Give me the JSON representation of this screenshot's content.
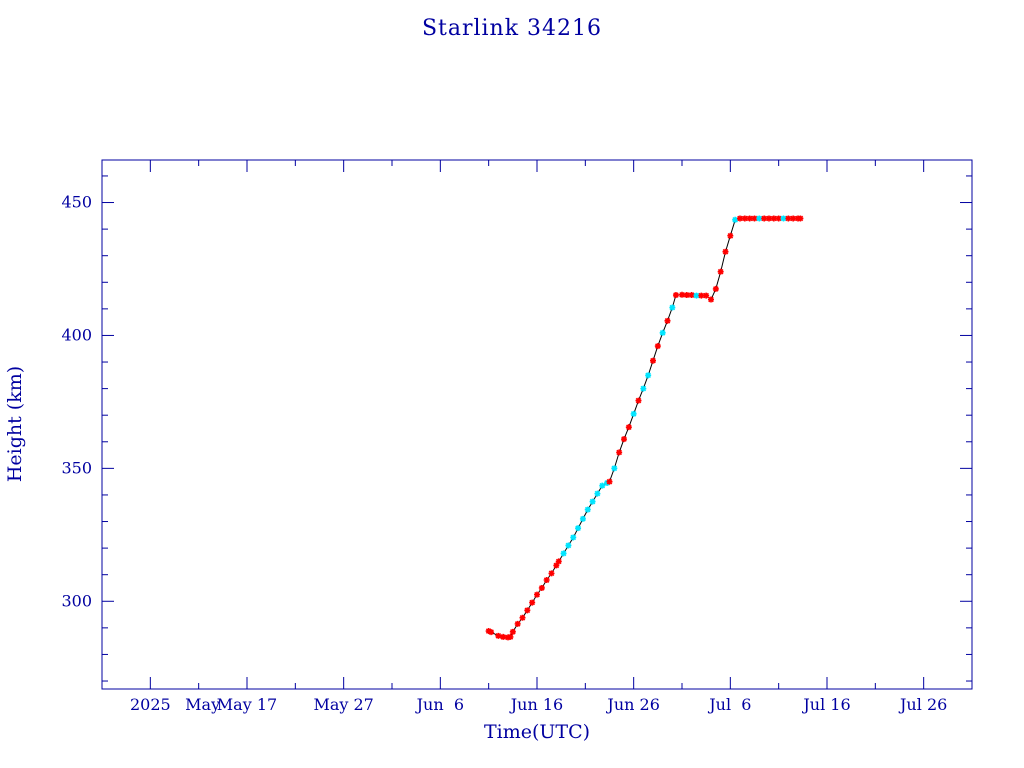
{
  "chart_data": {
    "type": "line",
    "title": "Starlink 34216",
    "xlabel": "Time(UTC)",
    "ylabel": "Height (km)",
    "x_is_date": true,
    "xlim": [
      "2025-05-02",
      "2025-07-31"
    ],
    "ylim": [
      267,
      466
    ],
    "x_ticks": [
      {
        "date": "2025-05-07",
        "label": "2025"
      },
      {
        "date": "2025-05-17",
        "label": "May 17"
      },
      {
        "date": "2025-05-27",
        "label": "May 27"
      },
      {
        "date": "2025-06-06",
        "label": "Jun  6"
      },
      {
        "date": "2025-06-16",
        "label": "Jun 16"
      },
      {
        "date": "2025-06-26",
        "label": "Jun 26"
      },
      {
        "date": "2025-07-06",
        "label": "Jul  6"
      },
      {
        "date": "2025-07-16",
        "label": "Jul 16"
      },
      {
        "date": "2025-07-26",
        "label": "Jul 26"
      }
    ],
    "x_extra_label": {
      "date": "2025-05-12",
      "label": "May"
    },
    "y_ticks": [
      300,
      350,
      400,
      450
    ],
    "y_minor_step": 10,
    "x_minor_step_days": 5,
    "grid": false,
    "colors": {
      "axis": "#0000a0",
      "line": "#000000",
      "marker_primary": "#ff0000",
      "marker_secondary": "#00e5ff"
    },
    "series": [
      {
        "points": [
          {
            "x": "2025-06-11T00:00",
            "y": 288.8,
            "m": "red"
          },
          {
            "x": "2025-06-11T06:00",
            "y": 288.4,
            "m": "red"
          },
          {
            "x": "2025-06-12T00:00",
            "y": 287.0,
            "m": "red"
          },
          {
            "x": "2025-06-12T12:00",
            "y": 286.6,
            "m": "red"
          },
          {
            "x": "2025-06-13T00:00",
            "y": 286.4,
            "m": "red"
          },
          {
            "x": "2025-06-13T06:00",
            "y": 286.6,
            "m": "red"
          },
          {
            "x": "2025-06-13T12:00",
            "y": 288.5,
            "m": "red"
          },
          {
            "x": "2025-06-14T00:00",
            "y": 291.5,
            "m": "red"
          },
          {
            "x": "2025-06-14T12:00",
            "y": 293.8,
            "m": "red"
          },
          {
            "x": "2025-06-15T00:00",
            "y": 296.6,
            "m": "red"
          },
          {
            "x": "2025-06-15T12:00",
            "y": 299.5,
            "m": "red"
          },
          {
            "x": "2025-06-16T00:00",
            "y": 302.5,
            "m": "red"
          },
          {
            "x": "2025-06-16T12:00",
            "y": 305.0,
            "m": "red"
          },
          {
            "x": "2025-06-17T00:00",
            "y": 308.0,
            "m": "red"
          },
          {
            "x": "2025-06-17T12:00",
            "y": 310.5,
            "m": "red"
          },
          {
            "x": "2025-06-18T00:00",
            "y": 313.5,
            "m": "red"
          },
          {
            "x": "2025-06-18T06:00",
            "y": 315.0,
            "m": "red"
          },
          {
            "x": "2025-06-18T18:00",
            "y": 318.0,
            "m": "cyan"
          },
          {
            "x": "2025-06-19T06:00",
            "y": 321.0,
            "m": "cyan"
          },
          {
            "x": "2025-06-19T18:00",
            "y": 324.0,
            "m": "cyan"
          },
          {
            "x": "2025-06-20T06:00",
            "y": 327.5,
            "m": "cyan"
          },
          {
            "x": "2025-06-20T18:00",
            "y": 331.0,
            "m": "cyan"
          },
          {
            "x": "2025-06-21T06:00",
            "y": 334.5,
            "m": "cyan"
          },
          {
            "x": "2025-06-21T18:00",
            "y": 337.5,
            "m": "cyan"
          },
          {
            "x": "2025-06-22T06:00",
            "y": 340.5,
            "m": "cyan"
          },
          {
            "x": "2025-06-22T18:00",
            "y": 343.5,
            "m": "cyan"
          },
          {
            "x": "2025-06-23T06:00",
            "y": 344.5,
            "m": "cyan"
          },
          {
            "x": "2025-06-23T12:00",
            "y": 345.0,
            "m": "red"
          },
          {
            "x": "2025-06-24T00:00",
            "y": 350.0,
            "m": "cyan"
          },
          {
            "x": "2025-06-24T12:00",
            "y": 356.0,
            "m": "red"
          },
          {
            "x": "2025-06-25T00:00",
            "y": 361.0,
            "m": "red"
          },
          {
            "x": "2025-06-25T12:00",
            "y": 365.5,
            "m": "red"
          },
          {
            "x": "2025-06-26T00:00",
            "y": 370.5,
            "m": "cyan"
          },
          {
            "x": "2025-06-26T12:00",
            "y": 375.5,
            "m": "red"
          },
          {
            "x": "2025-06-27T00:00",
            "y": 380.0,
            "m": "cyan"
          },
          {
            "x": "2025-06-27T12:00",
            "y": 385.0,
            "m": "cyan"
          },
          {
            "x": "2025-06-28T00:00",
            "y": 390.5,
            "m": "red"
          },
          {
            "x": "2025-06-28T12:00",
            "y": 396.0,
            "m": "red"
          },
          {
            "x": "2025-06-29T00:00",
            "y": 401.0,
            "m": "cyan"
          },
          {
            "x": "2025-06-29T12:00",
            "y": 405.5,
            "m": "red"
          },
          {
            "x": "2025-06-30T00:00",
            "y": 410.5,
            "m": "cyan"
          },
          {
            "x": "2025-06-30T09:00",
            "y": 415.2,
            "m": "red"
          },
          {
            "x": "2025-07-01T00:00",
            "y": 415.3,
            "m": "red"
          },
          {
            "x": "2025-07-01T12:00",
            "y": 415.2,
            "m": "red"
          },
          {
            "x": "2025-07-02T00:00",
            "y": 415.2,
            "m": "red"
          },
          {
            "x": "2025-07-02T12:00",
            "y": 415.0,
            "m": "cyan"
          },
          {
            "x": "2025-07-03T00:00",
            "y": 415.0,
            "m": "red"
          },
          {
            "x": "2025-07-03T12:00",
            "y": 415.0,
            "m": "red"
          },
          {
            "x": "2025-07-04T00:00",
            "y": 413.5,
            "m": "red"
          },
          {
            "x": "2025-07-04T12:00",
            "y": 417.5,
            "m": "red"
          },
          {
            "x": "2025-07-05T00:00",
            "y": 424.0,
            "m": "red"
          },
          {
            "x": "2025-07-05T12:00",
            "y": 431.5,
            "m": "red"
          },
          {
            "x": "2025-07-06T00:00",
            "y": 437.5,
            "m": "red"
          },
          {
            "x": "2025-07-06T12:00",
            "y": 443.5,
            "m": "cyan"
          },
          {
            "x": "2025-07-07T00:00",
            "y": 444.0,
            "m": "red"
          },
          {
            "x": "2025-07-07T12:00",
            "y": 444.0,
            "m": "red"
          },
          {
            "x": "2025-07-08T00:00",
            "y": 444.0,
            "m": "red"
          },
          {
            "x": "2025-07-08T12:00",
            "y": 444.0,
            "m": "red"
          },
          {
            "x": "2025-07-09T00:00",
            "y": 444.0,
            "m": "cyan"
          },
          {
            "x": "2025-07-09T12:00",
            "y": 444.0,
            "m": "red"
          },
          {
            "x": "2025-07-10T00:00",
            "y": 444.0,
            "m": "red"
          },
          {
            "x": "2025-07-10T12:00",
            "y": 444.0,
            "m": "red"
          },
          {
            "x": "2025-07-11T00:00",
            "y": 444.0,
            "m": "red"
          },
          {
            "x": "2025-07-11T12:00",
            "y": 444.0,
            "m": "cyan"
          },
          {
            "x": "2025-07-12T00:00",
            "y": 444.0,
            "m": "red"
          },
          {
            "x": "2025-07-12T12:00",
            "y": 444.0,
            "m": "red"
          },
          {
            "x": "2025-07-13T00:00",
            "y": 444.0,
            "m": "red"
          },
          {
            "x": "2025-07-13T06:00",
            "y": 444.0,
            "m": "red"
          }
        ]
      }
    ]
  }
}
